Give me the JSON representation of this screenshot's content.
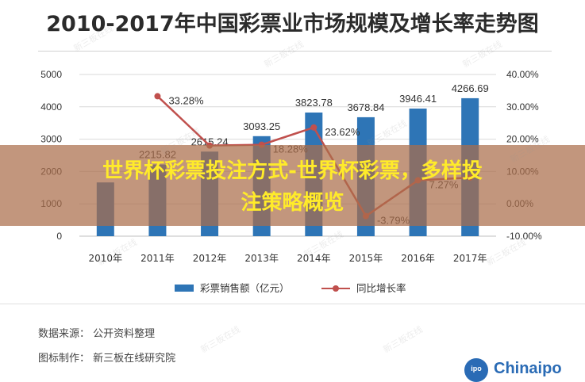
{
  "title": "2010-2017年中国彩票业市场规模及增长率走势图",
  "chart_data": {
    "type": "bar",
    "categories": [
      "2010年",
      "2011年",
      "2012年",
      "2013年",
      "2014年",
      "2015年",
      "2016年",
      "2017年"
    ],
    "series": [
      {
        "name": "彩票销售额（亿元）",
        "type": "bar",
        "axis": "left",
        "color": "#2e75b6",
        "values": [
          1662.0,
          2215.82,
          2615.24,
          3093.25,
          3823.78,
          3678.84,
          3946.41,
          4266.69
        ],
        "labels": [
          "",
          "2215.82",
          "2615.24",
          "3093.25",
          "3823.78",
          "3678.84",
          "3946.41",
          "4266.69"
        ]
      },
      {
        "name": "同比增长率",
        "type": "line",
        "axis": "right",
        "color": "#c0504d",
        "values": [
          null,
          33.28,
          18.03,
          18.28,
          23.62,
          -3.79,
          7.27,
          8.12
        ],
        "labels": [
          "",
          "33.28%",
          "",
          "18.28%",
          "23.62%",
          "-3.79%",
          "7.27%",
          ""
        ]
      }
    ],
    "y_left": {
      "ylim": [
        0,
        5000
      ],
      "ticks": [
        "0",
        "1000",
        "2000",
        "3000",
        "4000",
        "5000"
      ]
    },
    "y_right": {
      "ylim": [
        -10,
        40
      ],
      "ticks": [
        "-10.00%",
        "0.00%",
        "10.00%",
        "20.00%",
        "30.00%",
        "40.00%"
      ]
    },
    "grid": true,
    "legend": "bottom"
  },
  "source": {
    "data_source": "数据来源：  公开资料整理",
    "producer": "图标制作：  新三板在线研究院"
  },
  "overlay": {
    "line1": "世界杯彩票投注方式-世界杯彩票，多样投",
    "line2": "注策略概览"
  },
  "logo": {
    "text": "Chinaipo",
    "badge": "ipo"
  },
  "watermark": "新三板在线",
  "colors": {
    "bar": "#2e75b6",
    "line": "#c0504d",
    "overlay_text": "#ffeb2a"
  }
}
